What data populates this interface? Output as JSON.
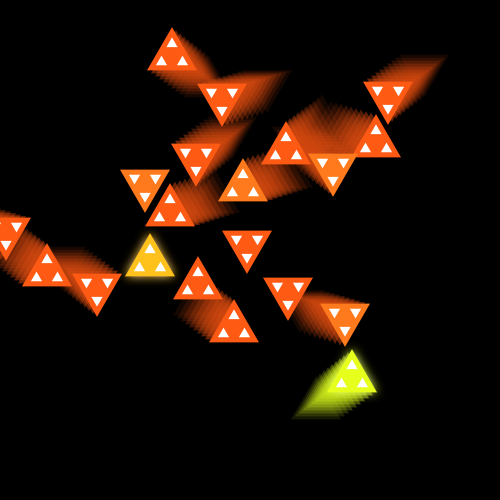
{
  "scene": {
    "background": "#000000",
    "tile_colors": {
      "orange_red": "#ff5a14",
      "orange": "#ff7a1c",
      "amber": "#ff9f1a",
      "golden": "#ffc21a",
      "lime_yellow": "#e6ff1a",
      "trail": "#d2480f",
      "inner": "#ffffff"
    },
    "tiles": [
      {
        "tone": "orange_red",
        "dir": "up",
        "trail": "down-right",
        "glow": false
      },
      {
        "tone": "orange_red",
        "dir": "down",
        "trail": "right",
        "glow": false
      },
      {
        "tone": "orange_red",
        "dir": "down",
        "trail": "up-right",
        "glow": false
      },
      {
        "tone": "orange_red",
        "dir": "up",
        "trail": "left",
        "glow": false
      },
      {
        "tone": "orange_red",
        "dir": "down",
        "trail": "up-right",
        "glow": false
      },
      {
        "tone": "orange_red",
        "dir": "up",
        "trail": "up-right",
        "glow": false
      },
      {
        "tone": "orange",
        "dir": "down",
        "trail": "up-left",
        "glow": false
      },
      {
        "tone": "orange",
        "dir": "up",
        "trail": "right",
        "glow": false
      },
      {
        "tone": "orange",
        "dir": "down",
        "trail": "none",
        "glow": false
      },
      {
        "tone": "orange_red",
        "dir": "up",
        "trail": "right",
        "glow": false
      },
      {
        "tone": "orange_red",
        "dir": "down",
        "trail": "left",
        "glow": false
      },
      {
        "tone": "orange_red",
        "dir": "up",
        "trail": "up-left",
        "glow": false
      },
      {
        "tone": "orange_red",
        "dir": "down",
        "trail": "up-left",
        "glow": false
      },
      {
        "tone": "golden",
        "dir": "up",
        "trail": "none",
        "glow": true
      },
      {
        "tone": "orange_red",
        "dir": "down",
        "trail": "none",
        "glow": false
      },
      {
        "tone": "orange_red",
        "dir": "up",
        "trail": "none",
        "glow": false
      },
      {
        "tone": "orange_red",
        "dir": "up",
        "trail": "up-left",
        "glow": false
      },
      {
        "tone": "orange_red",
        "dir": "down",
        "trail": "none",
        "glow": false
      },
      {
        "tone": "orange",
        "dir": "down",
        "trail": "left",
        "glow": false
      },
      {
        "tone": "lime_yellow",
        "dir": "up",
        "trail": "down-left",
        "glow": true
      }
    ]
  }
}
